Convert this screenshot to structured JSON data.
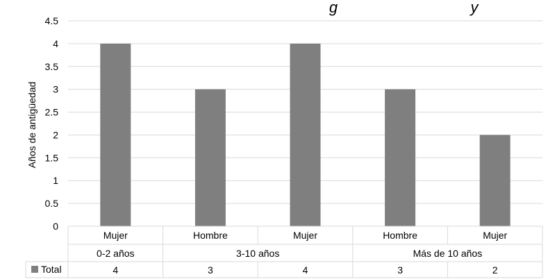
{
  "chart_data": {
    "type": "bar",
    "title_fragment_visible": "g",
    "title_fragment_visible_right": "y",
    "ylabel": "Años de antigüedad",
    "ylim": [
      0,
      4.5
    ],
    "y_ticks": [
      "0",
      "0.5",
      "1",
      "1.5",
      "2",
      "2.5",
      "3",
      "3.5",
      "4",
      "4.5"
    ],
    "categories": [
      "Mujer",
      "Hombre",
      "Mujer",
      "Hombre",
      "Mujer"
    ],
    "groups": [
      {
        "label": "0-2 años",
        "span": 1
      },
      {
        "label": "3-10 años",
        "span": 2
      },
      {
        "label": "Más de 10 años",
        "span": 2
      }
    ],
    "series": [
      {
        "name": "Total",
        "values": [
          4,
          3,
          4,
          3,
          2
        ],
        "color": "#7f7f7f"
      }
    ],
    "table_values": [
      "4",
      "3",
      "4",
      "3",
      "2"
    ],
    "grid": true,
    "legend": "data-table"
  }
}
